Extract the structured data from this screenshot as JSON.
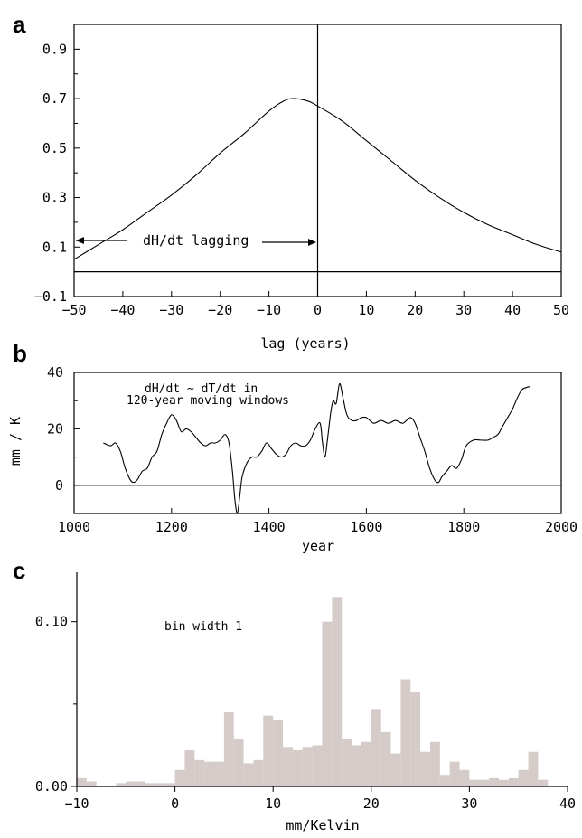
{
  "chart_data": [
    {
      "panel": "a",
      "type": "line",
      "xlabel": "lag (years)",
      "ylabel": "",
      "xlim": [
        -50,
        50
      ],
      "ylim": [
        -0.1,
        1.0
      ],
      "xticks": [
        -50,
        -40,
        -30,
        -20,
        -10,
        0,
        10,
        20,
        30,
        40,
        50
      ],
      "xtick_labels": [
        "−50",
        "−40",
        "−30",
        "−20",
        "−10",
        "0",
        "10",
        "20",
        "30",
        "40",
        "50"
      ],
      "yticks": [
        -0.1,
        0.1,
        0.3,
        0.5,
        0.7,
        0.9
      ],
      "ytick_labels": [
        "−0.1",
        "0.1",
        "0.3",
        "0.5",
        "0.7",
        "0.9"
      ],
      "annotation": "dH/dt lagging",
      "reference_lines": {
        "hline_y": 0.0,
        "vline_x": 0
      },
      "x": [
        -50,
        -45,
        -40,
        -35,
        -30,
        -25,
        -20,
        -15,
        -10,
        -7,
        -5,
        -2,
        0,
        5,
        10,
        15,
        20,
        25,
        30,
        35,
        40,
        45,
        50
      ],
      "y": [
        0.05,
        0.11,
        0.17,
        0.24,
        0.31,
        0.39,
        0.48,
        0.56,
        0.65,
        0.69,
        0.7,
        0.69,
        0.67,
        0.61,
        0.53,
        0.45,
        0.37,
        0.3,
        0.24,
        0.19,
        0.15,
        0.11,
        0.08
      ]
    },
    {
      "panel": "b",
      "type": "line",
      "xlabel": "year",
      "ylabel": "mm / K",
      "xlim": [
        1000,
        2000
      ],
      "ylim": [
        -10,
        40
      ],
      "xticks": [
        1000,
        1200,
        1400,
        1600,
        1800,
        2000
      ],
      "xtick_labels": [
        "1000",
        "1200",
        "1400",
        "1600",
        "1800",
        "2000"
      ],
      "yticks": [
        0,
        20,
        40
      ],
      "ytick_labels": [
        "0",
        "20",
        "40"
      ],
      "annotation_lines": [
        "dH/dt ~ dT/dt in",
        "120-year moving windows"
      ],
      "reference_lines": {
        "hline_y": 0
      },
      "x": [
        1060,
        1075,
        1085,
        1095,
        1105,
        1115,
        1122,
        1130,
        1140,
        1150,
        1160,
        1170,
        1180,
        1190,
        1200,
        1210,
        1220,
        1230,
        1240,
        1250,
        1260,
        1270,
        1280,
        1290,
        1300,
        1310,
        1318,
        1325,
        1330,
        1335,
        1340,
        1345,
        1355,
        1365,
        1375,
        1385,
        1395,
        1405,
        1415,
        1425,
        1435,
        1445,
        1455,
        1465,
        1475,
        1485,
        1495,
        1505,
        1510,
        1515,
        1520,
        1527,
        1532,
        1538,
        1545,
        1552,
        1560,
        1570,
        1580,
        1590,
        1600,
        1615,
        1630,
        1645,
        1660,
        1675,
        1690,
        1700,
        1710,
        1720,
        1730,
        1740,
        1748,
        1755,
        1765,
        1775,
        1785,
        1795,
        1805,
        1820,
        1835,
        1850,
        1860,
        1870,
        1880,
        1890,
        1900,
        1910,
        1920,
        1935
      ],
      "y": [
        15,
        14,
        15,
        12,
        6,
        2,
        1,
        2,
        5,
        6,
        10,
        12,
        18,
        22,
        25,
        23,
        19,
        20,
        19,
        17,
        15,
        14,
        15,
        15,
        16,
        18,
        15,
        5,
        -5,
        -10,
        -4,
        3,
        8,
        10,
        10,
        12,
        15,
        13,
        11,
        10,
        11,
        14,
        15,
        14,
        14,
        16,
        20,
        22,
        15,
        10,
        16,
        26,
        30,
        29,
        36,
        31,
        25,
        23,
        23,
        24,
        24,
        22,
        23,
        22,
        23,
        22,
        24,
        22,
        17,
        12,
        6,
        2,
        1,
        3,
        5,
        7,
        6,
        9,
        14,
        16,
        16,
        16,
        17,
        18,
        21,
        24,
        27,
        31,
        34,
        35
      ]
    },
    {
      "panel": "c",
      "type": "bar",
      "xlabel": "mm/Kelvin",
      "ylabel": "",
      "annotation": "bin width 1",
      "xlim": [
        -10,
        40
      ],
      "ylim": [
        0,
        0.13
      ],
      "xticks": [
        -10,
        0,
        10,
        20,
        30,
        40
      ],
      "xtick_labels": [
        "−10",
        "0",
        "10",
        "20",
        "30",
        "40"
      ],
      "yticks": [
        0.0,
        0.1
      ],
      "ytick_labels": [
        "0.00",
        "0.10"
      ],
      "bin_width": 1,
      "bin_starts": [
        -10,
        -9,
        -8,
        -7,
        -6,
        -5,
        -4,
        -3,
        -2,
        -1,
        0,
        1,
        2,
        3,
        4,
        5,
        6,
        7,
        8,
        9,
        10,
        11,
        12,
        13,
        14,
        15,
        16,
        17,
        18,
        19,
        20,
        21,
        22,
        23,
        24,
        25,
        26,
        27,
        28,
        29,
        30,
        31,
        32,
        33,
        34,
        35,
        36,
        37
      ],
      "values": [
        0.005,
        0.003,
        0.0,
        0.0,
        0.002,
        0.003,
        0.003,
        0.002,
        0.002,
        0.002,
        0.01,
        0.022,
        0.016,
        0.015,
        0.015,
        0.045,
        0.029,
        0.014,
        0.016,
        0.043,
        0.04,
        0.024,
        0.022,
        0.024,
        0.025,
        0.1,
        0.115,
        0.029,
        0.025,
        0.027,
        0.047,
        0.033,
        0.02,
        0.065,
        0.057,
        0.021,
        0.027,
        0.007,
        0.015,
        0.01,
        0.004,
        0.004,
        0.005,
        0.004,
        0.005,
        0.01,
        0.021,
        0.004
      ]
    }
  ],
  "panels": {
    "a": {
      "letter": "a"
    },
    "b": {
      "letter": "b"
    },
    "c": {
      "letter": "c"
    }
  }
}
